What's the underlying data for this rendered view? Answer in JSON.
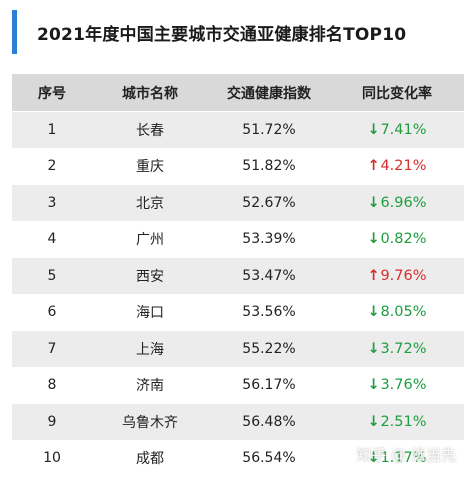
{
  "title": "2021年度中国主要城市交通亚健康排名TOP10",
  "colors": {
    "accent": "#2d7fd6",
    "down": "#1e9e3e",
    "up": "#d92c2c",
    "header_bg": "#d9d9d9",
    "stripe_bg": "#ececec"
  },
  "table": {
    "headers": [
      "序号",
      "城市名称",
      "交通健康指数",
      "同比变化率"
    ],
    "rows": [
      {
        "rank": "1",
        "city": "长春",
        "index": "51.72%",
        "direction": "down",
        "arrow": "↓",
        "change": "7.41%"
      },
      {
        "rank": "2",
        "city": "重庆",
        "index": "51.82%",
        "direction": "up",
        "arrow": "↑",
        "change": "4.21%"
      },
      {
        "rank": "3",
        "city": "北京",
        "index": "52.67%",
        "direction": "down",
        "arrow": "↓",
        "change": "6.96%"
      },
      {
        "rank": "4",
        "city": "广州",
        "index": "53.39%",
        "direction": "down",
        "arrow": "↓",
        "change": "0.82%"
      },
      {
        "rank": "5",
        "city": "西安",
        "index": "53.47%",
        "direction": "up",
        "arrow": "↑",
        "change": "9.76%"
      },
      {
        "rank": "6",
        "city": "海口",
        "index": "53.56%",
        "direction": "down",
        "arrow": "↓",
        "change": "8.05%"
      },
      {
        "rank": "7",
        "city": "上海",
        "index": "55.22%",
        "direction": "down",
        "arrow": "↓",
        "change": "3.72%"
      },
      {
        "rank": "8",
        "city": "济南",
        "index": "56.17%",
        "direction": "down",
        "arrow": "↓",
        "change": "3.76%"
      },
      {
        "rank": "9",
        "city": "乌鲁木齐",
        "index": "56.48%",
        "direction": "down",
        "arrow": "↓",
        "change": "2.51%"
      },
      {
        "rank": "10",
        "city": "成都",
        "index": "56.54%",
        "direction": "down",
        "arrow": "↓",
        "change": "1.17%"
      }
    ]
  },
  "watermark": "知乎 @ 谁当先"
}
